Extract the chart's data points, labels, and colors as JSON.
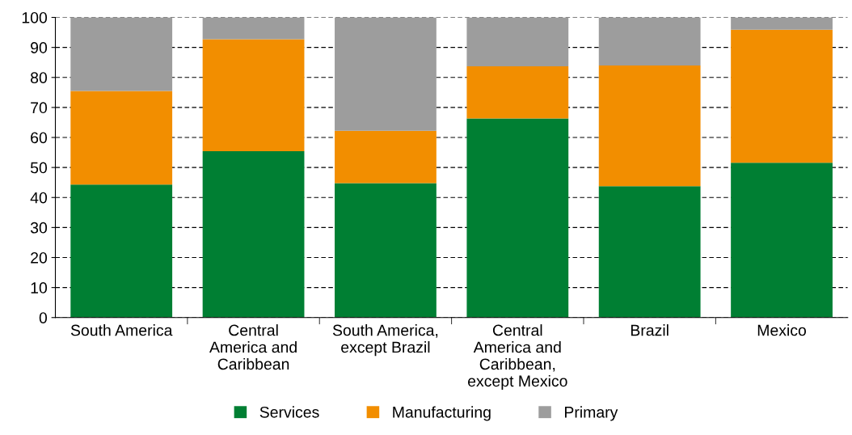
{
  "chart_data": {
    "type": "bar",
    "stacked": true,
    "categories": [
      "South America",
      "Central\nAmerica and\nCaribbean",
      "South America,\nexcept Brazil",
      "Central\nAmerica and\nCaribbean,\nexcept Mexico",
      "Brazil",
      "Mexico"
    ],
    "series": [
      {
        "name": "Services",
        "color": "#007f33",
        "values": [
          44.3,
          55.4,
          44.8,
          66.3,
          43.8,
          51.6
        ]
      },
      {
        "name": "Manufacturing",
        "color": "#f28e00",
        "values": [
          31.2,
          37.3,
          17.4,
          17.4,
          40.2,
          44.3
        ]
      },
      {
        "name": "Primary",
        "color": "#9d9d9d",
        "values": [
          24.5,
          7.3,
          37.8,
          16.3,
          16.0,
          4.1
        ]
      }
    ],
    "ylim": [
      0,
      100
    ],
    "yticks": [
      0,
      10,
      20,
      30,
      40,
      50,
      60,
      70,
      80,
      90,
      100
    ],
    "grid": "y",
    "legend": "bottom"
  }
}
